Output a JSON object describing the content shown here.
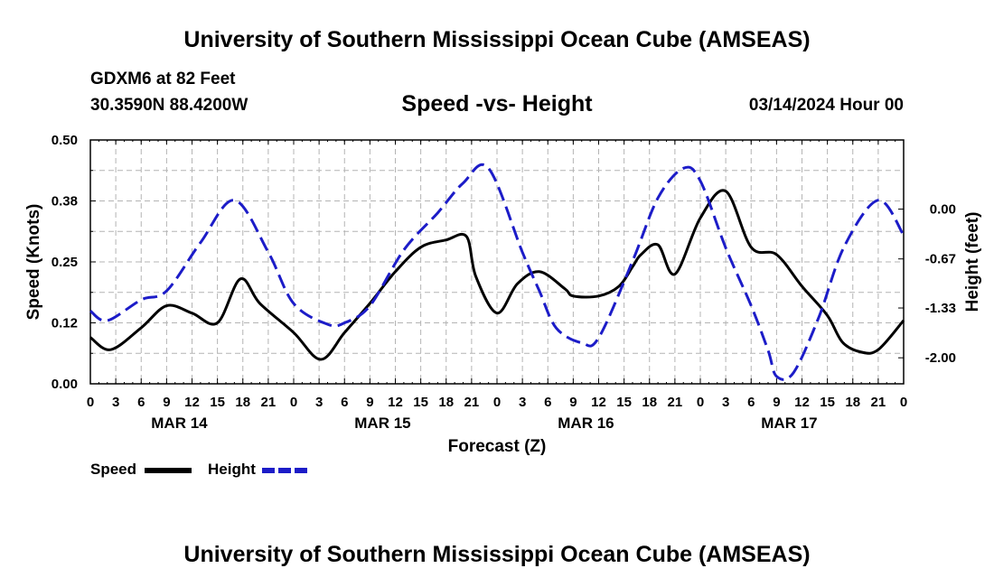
{
  "header": {
    "title": "University of Southern Mississippi Ocean Cube (AMSEAS)",
    "station": "GDXM6 at 82 Feet",
    "location": "30.3590N  88.4200W",
    "subtitle": "Speed -vs- Height",
    "datetime": "03/14/2024 Hour 00"
  },
  "footer": {
    "title": "University of Southern Mississippi Ocean Cube (AMSEAS)"
  },
  "legend": {
    "speed_label": "Speed",
    "height_label": "Height"
  },
  "colors": {
    "speed": "#000000",
    "height": "#1c1cc8",
    "grid": "#b4b4b4"
  },
  "chart_data": {
    "type": "line",
    "title": "Speed -vs- Height",
    "xlabel": "Forecast (Z)",
    "ylabel_left": "Speed (Knots)",
    "ylabel_right": "Height (feet)",
    "x_range_hours": [
      0,
      96
    ],
    "x_tick_labels": [
      "0",
      "3",
      "6",
      "9",
      "12",
      "15",
      "18",
      "21",
      "0",
      "3",
      "6",
      "9",
      "12",
      "15",
      "18",
      "21",
      "0",
      "3",
      "6",
      "9",
      "12",
      "15",
      "18",
      "21",
      "0",
      "3",
      "6",
      "9",
      "12",
      "15",
      "18",
      "21",
      "0"
    ],
    "date_labels": [
      {
        "label": "MAR 14",
        "hour": 10.5
      },
      {
        "label": "MAR 15",
        "hour": 34.5
      },
      {
        "label": "MAR 16",
        "hour": 58.5
      },
      {
        "label": "MAR 17",
        "hour": 82.5
      }
    ],
    "left_axis": {
      "ylim": [
        0,
        0.5
      ],
      "ticks": [
        0.0,
        0.125,
        0.25,
        0.375,
        0.5
      ],
      "tick_labels": [
        "0.00",
        "0.12",
        "0.25",
        "0.38",
        "0.50"
      ]
    },
    "right_axis": {
      "ylim": [
        -2.35,
        0.93
      ],
      "ticks": [
        0.0,
        -0.67,
        -1.33,
        -2.0
      ],
      "tick_labels": [
        "0.00",
        "-0.67",
        "-1.33",
        "-2.00"
      ]
    },
    "grid": true,
    "series": [
      {
        "name": "Speed",
        "axis": "left",
        "style": "solid",
        "x": [
          0,
          2.4,
          6,
          9,
          12,
          15,
          17.7,
          20,
          24,
          27.2,
          30,
          33,
          36,
          39,
          42,
          44.4,
          45.5,
          48,
          50.4,
          53,
          56,
          57,
          60,
          62.4,
          64,
          65,
          67,
          69,
          72,
          75,
          78,
          81,
          84,
          87,
          88.8,
          91,
          93,
          96
        ],
        "values": [
          0.095,
          0.07,
          0.115,
          0.16,
          0.145,
          0.125,
          0.215,
          0.165,
          0.105,
          0.05,
          0.105,
          0.165,
          0.23,
          0.28,
          0.295,
          0.302,
          0.22,
          0.145,
          0.205,
          0.23,
          0.195,
          0.18,
          0.18,
          0.2,
          0.24,
          0.265,
          0.285,
          0.225,
          0.34,
          0.395,
          0.28,
          0.265,
          0.2,
          0.14,
          0.085,
          0.065,
          0.07,
          0.13
        ]
      },
      {
        "name": "Height",
        "axis": "right",
        "style": "dashed",
        "x": [
          0,
          2,
          6,
          9,
          13,
          17,
          21,
          24,
          28,
          30,
          33,
          37,
          41,
          44,
          47,
          51,
          53,
          55,
          58,
          60,
          64,
          67,
          70,
          72,
          75,
          78,
          80,
          81,
          83,
          86,
          89,
          93,
          96
        ],
        "values": [
          -1.37,
          -1.5,
          -1.22,
          -1.1,
          -0.45,
          0.12,
          -0.58,
          -1.27,
          -1.55,
          -1.53,
          -1.3,
          -0.55,
          -0.05,
          0.35,
          0.55,
          -0.58,
          -1.1,
          -1.6,
          -1.8,
          -1.73,
          -0.7,
          0.15,
          0.55,
          0.38,
          -0.52,
          -1.3,
          -1.9,
          -2.25,
          -2.2,
          -1.45,
          -0.5,
          0.12,
          -0.35
        ]
      }
    ]
  }
}
